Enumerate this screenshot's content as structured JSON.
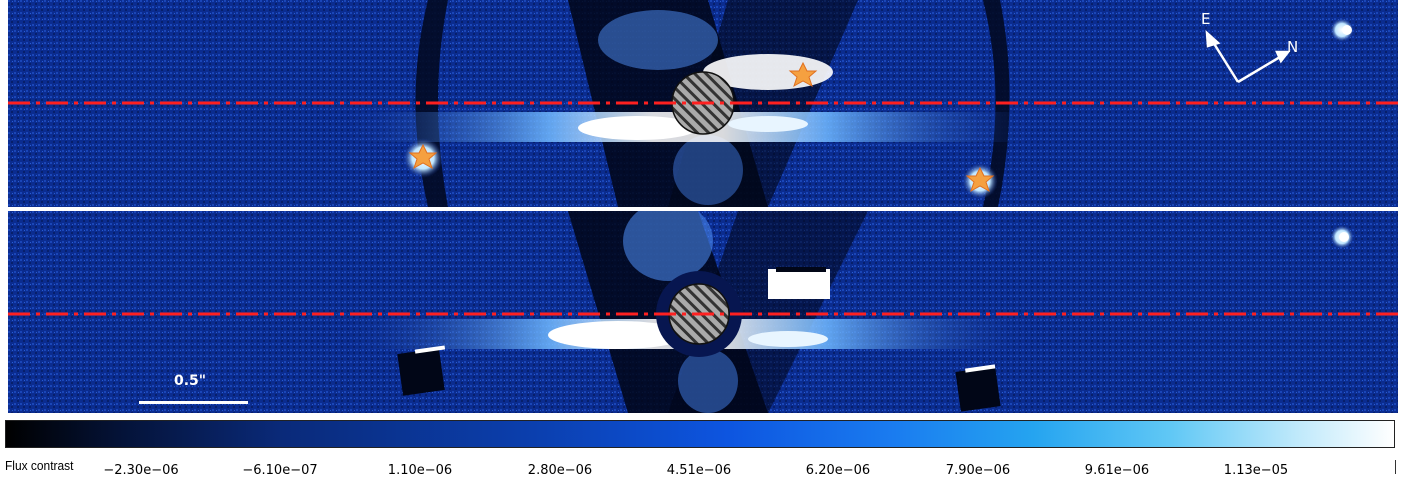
{
  "figure": {
    "panels": [
      {
        "id": "top",
        "companions_marked": 3
      },
      {
        "id": "bottom",
        "artifact_squares": 2
      }
    ],
    "compass": {
      "east": "E",
      "north": "N"
    },
    "scale_bar": {
      "label": "0.5\""
    },
    "colorbar": {
      "label": "Flux contrast",
      "ticks": [
        "−2.30e−06",
        "−6.10e−07",
        "1.10e−06",
        "2.80e−06",
        "4.51e−06",
        "6.20e−06",
        "7.90e−06",
        "9.61e−06",
        "1.13e−05"
      ],
      "colors": [
        "#000000",
        "#0a2a7a",
        "#0d55e0",
        "#25a4f0",
        "#ffffff"
      ]
    },
    "colors": {
      "background": "#0a2a8a",
      "disk": "#ffffff",
      "midplane_line": "#ff2020",
      "companion_star": "#f5a040",
      "mask": "#888888"
    }
  }
}
